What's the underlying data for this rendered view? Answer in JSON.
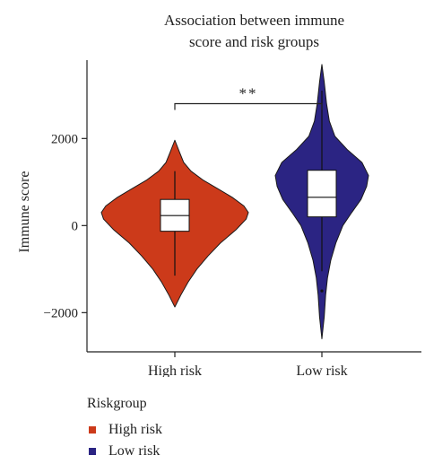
{
  "chart_data": {
    "type": "violin",
    "title_lines": [
      "Association between immune",
      "score and risk groups"
    ],
    "xlabel": "",
    "ylabel": "Immune score",
    "ylim": [
      -2900,
      3800
    ],
    "yticks": [
      2000,
      0,
      -2000
    ],
    "ytick_labels": [
      "2000",
      "0",
      "−2000"
    ],
    "categories": [
      "High risk",
      "Low risk"
    ],
    "series": [
      {
        "name": "High risk",
        "color": "#cc3a1a",
        "min": -1870,
        "max": 1960,
        "whisker_low": -1150,
        "whisker_high": 1250,
        "q1": -130,
        "median": 230,
        "q3": 600,
        "density": [
          [
            -1870,
            0.0
          ],
          [
            -1600,
            0.08
          ],
          [
            -1300,
            0.18
          ],
          [
            -1000,
            0.3
          ],
          [
            -700,
            0.45
          ],
          [
            -400,
            0.62
          ],
          [
            -100,
            0.83
          ],
          [
            150,
            0.97
          ],
          [
            300,
            1.0
          ],
          [
            450,
            0.94
          ],
          [
            650,
            0.78
          ],
          [
            850,
            0.58
          ],
          [
            1050,
            0.38
          ],
          [
            1250,
            0.22
          ],
          [
            1450,
            0.12
          ],
          [
            1700,
            0.06
          ],
          [
            1960,
            0.0
          ]
        ]
      },
      {
        "name": "Low risk",
        "color": "#2b2483",
        "min": -2600,
        "max": 3700,
        "whisker_low": -1050,
        "whisker_high": 3100,
        "q1": 200,
        "median": 650,
        "q3": 1270,
        "outliers": [
          -1500
        ],
        "density": [
          [
            -2600,
            0.0
          ],
          [
            -2100,
            0.05
          ],
          [
            -1600,
            0.08
          ],
          [
            -1200,
            0.12
          ],
          [
            -800,
            0.19
          ],
          [
            -400,
            0.3
          ],
          [
            0,
            0.45
          ],
          [
            300,
            0.64
          ],
          [
            600,
            0.84
          ],
          [
            900,
            0.96
          ],
          [
            1150,
            1.0
          ],
          [
            1450,
            0.86
          ],
          [
            1750,
            0.54
          ],
          [
            2050,
            0.28
          ],
          [
            2400,
            0.16
          ],
          [
            2800,
            0.1
          ],
          [
            3300,
            0.05
          ],
          [
            3700,
            0.0
          ]
        ]
      }
    ],
    "significance": {
      "label": "**",
      "from": "High risk",
      "to": "Low risk",
      "y": 2800
    },
    "legend": {
      "title": "Riskgroup",
      "placement": "bottom-left",
      "items": [
        {
          "label": "High risk",
          "color": "#cc3a1a"
        },
        {
          "label": "Low risk",
          "color": "#2b2483"
        }
      ]
    },
    "grid": false
  }
}
